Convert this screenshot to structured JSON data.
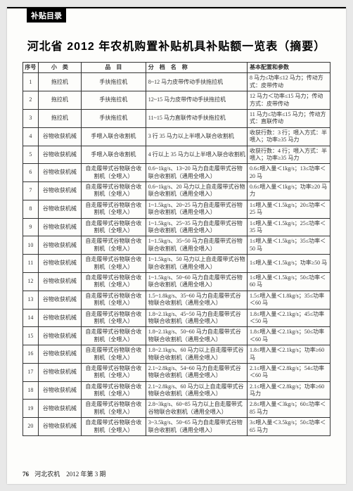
{
  "headerTab": "补贴目录",
  "title": "河北省 2012 年农机购置补贴机具补贴额一览表（摘要）",
  "columns": [
    "序号",
    "小　类",
    "品　目",
    "分　档　名　称",
    "基本配置和参数"
  ],
  "rows": [
    {
      "seq": "1",
      "cat": "拖拉机",
      "prod": "手扶拖拉机",
      "spec": "8~12 马力皮带传动手扶拖拉机",
      "conf": "8 马力≤功率≤12 马力；传动方式：皮带传动"
    },
    {
      "seq": "2",
      "cat": "拖拉机",
      "prod": "手扶拖拉机",
      "spec": "12~15 马力皮带传动手扶拖拉机",
      "conf": "12 马力＜功率≤15 马力；传动方式：皮带传动"
    },
    {
      "seq": "3",
      "cat": "拖拉机",
      "prod": "手扶拖拉机",
      "spec": "11~15 马力直联传动手扶拖拉机",
      "conf": "11 马力≤功率≤15 马力；传动方式：直联传动"
    },
    {
      "seq": "4",
      "cat": "谷物收获机械",
      "prod": "手喂入联合收割机",
      "spec": "3 行 35 马力以上半喂入联合收割机",
      "conf": "收获行数：3 行；喂入方式：半喂入；功率≥35 马力"
    },
    {
      "seq": "5",
      "cat": "谷物收获机械",
      "prod": "手喂入联合收割机",
      "spec": "4 行以上 35 马力以上半喂入联合收割机",
      "conf": "收获行数：4 行；喂入方式：半喂入；功率≥35 马力"
    },
    {
      "seq": "6",
      "cat": "谷物收获机械",
      "prod": "自走履带式谷物联合收割机（全喂入）",
      "spec": "0.6~1kg/s、13~20 马力自走履带式谷物联合收割机（通用全喂入）",
      "conf": "0.6≤喂入量＜1kg/s；13≤功率＜20 马"
    },
    {
      "seq": "7",
      "cat": "谷物收获机械",
      "prod": "自走履带式谷物联合收割机（全喂入）",
      "spec": "0.6~1kg/s、20 马力以上自走履带式谷物联合收割机（通用全喂入）",
      "conf": "0.6≤喂入量＜1kg/s；功率≥20 马力"
    },
    {
      "seq": "8",
      "cat": "谷物收获机械",
      "prod": "自走履带式谷物联合收割机（全喂入）",
      "spec": "1~1.5kg/s、20~25 马力自走履带式谷物联合收割机（通用全喂入）",
      "conf": "1≤喂入量＜1.5kg/s；20≤功率＜25 马"
    },
    {
      "seq": "9",
      "cat": "谷物收获机械",
      "prod": "自走履带式谷物联合收割机（全喂入）",
      "spec": "1~1.5kg/s、25~35 马力自走履带式谷物联合收割机（通用全喂入）",
      "conf": "1≤喂入量＜1.5kg/s；25≤功率＜35 马"
    },
    {
      "seq": "10",
      "cat": "谷物收获机械",
      "prod": "自走履带式谷物联合收割机（全喂入）",
      "spec": "1~1.5kg/s、35~50 马力自走履带式谷物联合收割机（通用全喂入）",
      "conf": "1≤喂入量＜1.5kg/s；35≤功率＜50 马"
    },
    {
      "seq": "11",
      "cat": "谷物收获机械",
      "prod": "自走履带式谷物联合收割机（全喂入）",
      "spec": "1~1.5kg/s、50 马力以上自走履带式谷物联合收割机（通用全喂入）",
      "conf": "1≤喂入量＜1.5kg/s；功率≥50 马"
    },
    {
      "seq": "12",
      "cat": "谷物收获机械",
      "prod": "自走履带式谷物联合收割机（全喂入）",
      "spec": "1~1.5kg/s、50~60 马力自走履带式谷物联合收割机（通用全喂入）",
      "conf": "1≤喂入量＜1.5kg/s；50≤功率＜60 马"
    },
    {
      "seq": "13",
      "cat": "谷物收获机械",
      "prod": "自走履带式谷物联合收割机（全喂入）",
      "spec": "1.5~1.8kg/s、35~60 马力自走履带式谷物联合收割机（通用全喂入）",
      "conf": "1.5≤喂入量＜1.8kg/s；35≤功率＜60 马"
    },
    {
      "seq": "14",
      "cat": "谷物收获机械",
      "prod": "自走履带式谷物联合收割机（全喂入）",
      "spec": "1.8~2.1kg/s、45~50 马力自走履带式谷物联合收割机（通用全喂入）",
      "conf": "1.8≤喂入量＜2.1kg/s；45≤功率＜50 马"
    },
    {
      "seq": "15",
      "cat": "谷物收获机械",
      "prod": "自走履带式谷物联合收割机（全喂入）",
      "spec": "1.8~2.1kg/s、50~60 马力自走履带式谷物联合收割机（通用全喂入）",
      "conf": "1.8≤喂入量＜2.1kg/s；50≤功率＜60 马"
    },
    {
      "seq": "16",
      "cat": "谷物收获机械",
      "prod": "自走履带式谷物联合收割机（全喂入）",
      "spec": "1.8~2.1kg/s、60 马力以上自走履带式谷物联合收割机（通用全喂入）",
      "conf": "1.8≤喂入量＜2.1kg/s；功率≥60 马"
    },
    {
      "seq": "17",
      "cat": "谷物收获机械",
      "prod": "自走履带式谷物联合收割机（全喂入）",
      "spec": "2.1~2.8kg/s、54~60 马力自走履带式谷物联合收割机（通用全喂入）",
      "conf": "2.1≤喂入量＜2.8kg/s；54≤功率＜60 马"
    },
    {
      "seq": "18",
      "cat": "谷物收获机械",
      "prod": "自走履带式谷物联合收割机（全喂入）",
      "spec": "2.1~2.8kg/s、60 马力以上自走履带式谷物联合收割机（通用全喂入）",
      "conf": "2.1≤喂入量＜2.8kg/s；功率≥60 马力"
    },
    {
      "seq": "19",
      "cat": "谷物收获机械",
      "prod": "自走履带式谷物联合收割机（全喂入）",
      "spec": "2.8~3kg/s、60~85 马力以上自走履带式谷物联合收割机（通用全喂入）",
      "conf": "2.8≤喂入量＜3kg/s；60≤功率＜85 马力"
    },
    {
      "seq": "20",
      "cat": "谷物收获机械",
      "prod": "自走履带式谷物联合收割机（全喂入）",
      "spec": "3~3.5kg/s、50~65 马力自走履带式谷物联合收割机（通用全喂入）",
      "conf": "3≤喂入量＜3.5kg/s；50≤功率＜65 马力"
    }
  ],
  "footer": {
    "pageNum": "76",
    "pubInfo": "河北农机　2012 年第 3 期"
  }
}
